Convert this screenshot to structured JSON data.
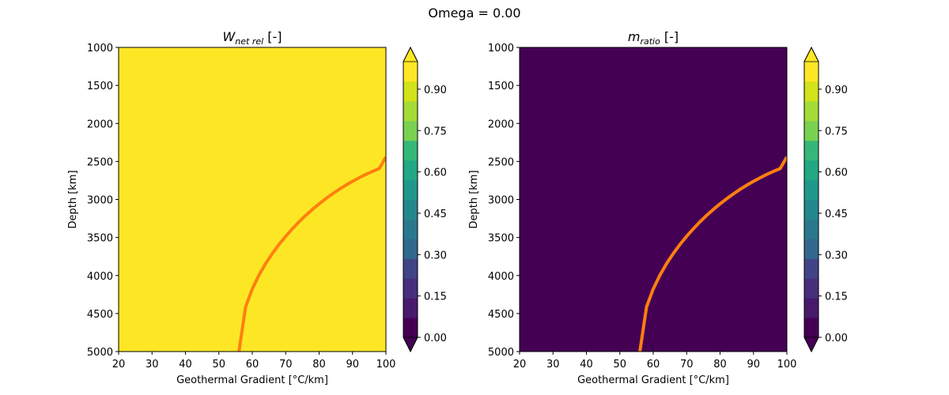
{
  "figure": {
    "suptitle": "Omega = 0.00"
  },
  "chart_data": [
    {
      "type": "heatmap",
      "title_main": "W",
      "title_sub": "net rel",
      "title_suffix": " [-]",
      "xlabel": "Geothermal Gradient [°C/km]",
      "ylabel": "Depth [km]",
      "xlim": [
        20,
        100
      ],
      "ylim": [
        5000,
        1000
      ],
      "y_inverted": true,
      "xticks": [
        20,
        30,
        40,
        50,
        60,
        70,
        80,
        90,
        100
      ],
      "yticks": [
        1000,
        1500,
        2000,
        2500,
        3000,
        3500,
        4000,
        4500,
        5000
      ],
      "field_value": 1.0,
      "field_color": "#fde725",
      "colorbar": {
        "min": 0.0,
        "max": 1.0,
        "extend": "both",
        "ticks": [
          "0.00",
          "0.15",
          "0.30",
          "0.45",
          "0.60",
          "0.75",
          "0.90"
        ],
        "levels": 14
      },
      "curve": {
        "color": "#ff7f0e",
        "x": [
          56,
          58,
          60,
          62,
          64,
          66,
          68,
          70,
          72,
          74,
          76,
          78,
          80,
          82,
          84,
          86,
          88,
          90,
          92,
          94,
          96,
          98,
          100
        ],
        "y": [
          5000,
          4415,
          4176,
          3994,
          3843,
          3710,
          3591,
          3484,
          3385,
          3294,
          3209,
          3131,
          3058,
          2990,
          2926,
          2867,
          2812,
          2761,
          2714,
          2670,
          2630,
          2594,
          2440
        ]
      }
    },
    {
      "type": "heatmap",
      "title_main": "m",
      "title_sub": "ratio",
      "title_suffix": " [-]",
      "xlabel": "Geothermal Gradient [°C/km]",
      "ylabel": "Depth [km]",
      "xlim": [
        20,
        100
      ],
      "ylim": [
        5000,
        1000
      ],
      "y_inverted": true,
      "xticks": [
        20,
        30,
        40,
        50,
        60,
        70,
        80,
        90,
        100
      ],
      "yticks": [
        1000,
        1500,
        2000,
        2500,
        3000,
        3500,
        4000,
        4500,
        5000
      ],
      "field_value": 0.0,
      "field_color": "#440154",
      "colorbar": {
        "min": 0.0,
        "max": 1.0,
        "extend": "both",
        "ticks": [
          "0.00",
          "0.15",
          "0.30",
          "0.45",
          "0.60",
          "0.75",
          "0.90"
        ],
        "levels": 14
      },
      "curve": {
        "color": "#ff7f0e",
        "x": [
          56,
          58,
          60,
          62,
          64,
          66,
          68,
          70,
          72,
          74,
          76,
          78,
          80,
          82,
          84,
          86,
          88,
          90,
          92,
          94,
          96,
          98,
          100
        ],
        "y": [
          5000,
          4415,
          4176,
          3994,
          3843,
          3710,
          3591,
          3484,
          3385,
          3294,
          3209,
          3131,
          3058,
          2990,
          2926,
          2867,
          2812,
          2761,
          2714,
          2670,
          2630,
          2594,
          2440
        ]
      }
    }
  ],
  "viridis_palette": [
    "#440154",
    "#481a6c",
    "#472f7d",
    "#414487",
    "#39568c",
    "#31688e",
    "#2a788e",
    "#23888e",
    "#1f988b",
    "#22a884",
    "#35b779",
    "#54c568",
    "#7ad151",
    "#a5db36",
    "#d2e21b",
    "#fde725"
  ]
}
